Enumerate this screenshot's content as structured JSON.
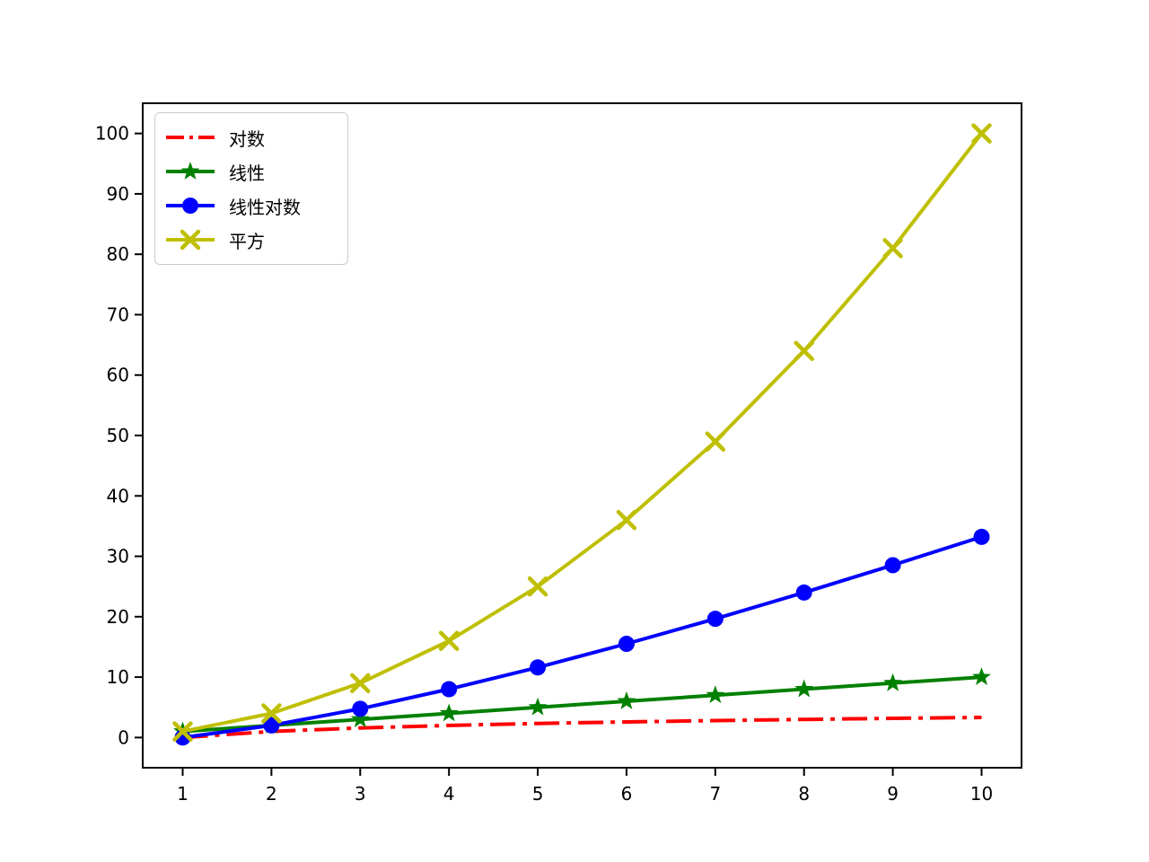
{
  "chart_data": {
    "type": "line",
    "title": "",
    "xlabel": "",
    "ylabel": "",
    "grid": false,
    "legend_position": "upper-left",
    "x": [
      1,
      2,
      3,
      4,
      5,
      6,
      7,
      8,
      9,
      10
    ],
    "xticks": [
      1,
      2,
      3,
      4,
      5,
      6,
      7,
      8,
      9,
      10
    ],
    "yticks": [
      0,
      10,
      20,
      30,
      40,
      50,
      60,
      70,
      80,
      90,
      100
    ],
    "xlim": [
      0.55,
      10.45
    ],
    "ylim": [
      -5,
      105
    ],
    "series": [
      {
        "name": "对数",
        "color": "#ff0000",
        "linestyle": "dashdot",
        "marker": "none",
        "values": [
          0,
          1,
          1.585,
          2,
          2.322,
          2.585,
          2.807,
          3,
          3.17,
          3.322
        ]
      },
      {
        "name": "线性",
        "color": "#008000",
        "linestyle": "solid",
        "marker": "star",
        "values": [
          1,
          2,
          3,
          4,
          5,
          6,
          7,
          8,
          9,
          10
        ]
      },
      {
        "name": "线性对数",
        "color": "#0000ff",
        "linestyle": "solid",
        "marker": "circle",
        "values": [
          0,
          2,
          4.755,
          8,
          11.61,
          15.51,
          19.651,
          24,
          28.529,
          33.219
        ]
      },
      {
        "name": "平方",
        "color": "#bfbf00",
        "linestyle": "solid",
        "marker": "x",
        "values": [
          1,
          4,
          9,
          16,
          25,
          36,
          49,
          64,
          81,
          100
        ]
      }
    ],
    "axis_color": "#000000",
    "plot_bg": "#ffffff"
  }
}
